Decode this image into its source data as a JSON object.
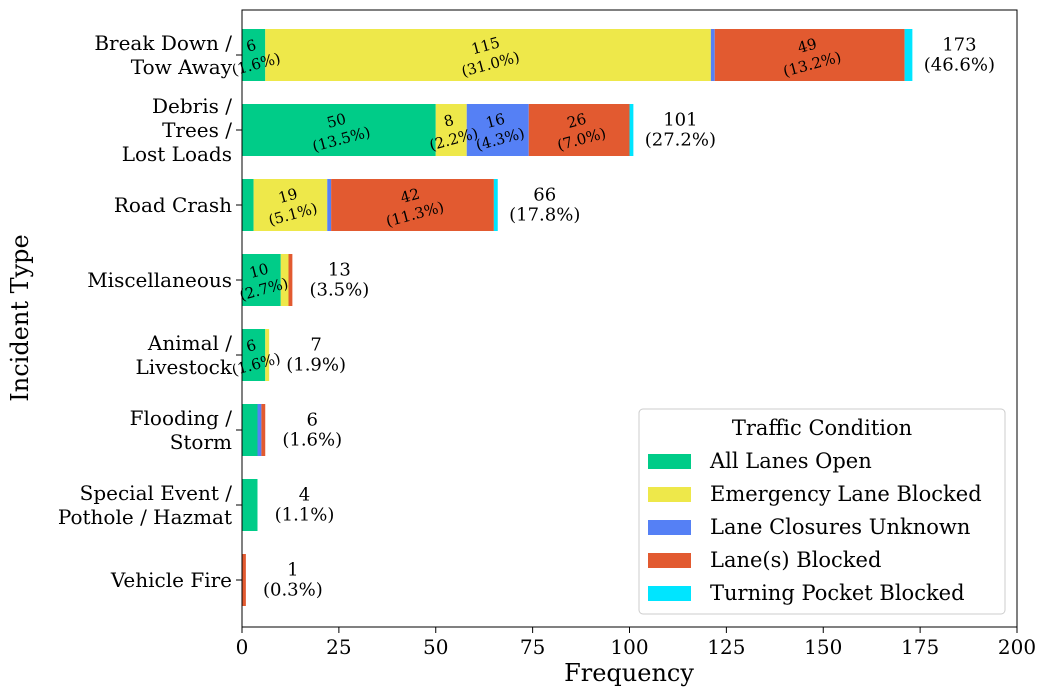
{
  "chart_data": {
    "type": "bar",
    "orientation": "horizontal",
    "stacked": true,
    "xlabel": "Frequency",
    "ylabel": "Incident Type",
    "xlim": [
      0,
      200
    ],
    "xticks": [
      "0",
      "25",
      "50",
      "75",
      "100",
      "125",
      "150",
      "175",
      "200"
    ],
    "grid": false,
    "legend_title": "Traffic Condition",
    "legend_position": "bottom-right",
    "categories": [
      [
        "Break Down /",
        "Tow Away"
      ],
      [
        "Debris /",
        "Trees /",
        "Lost Loads"
      ],
      [
        "Road Crash"
      ],
      [
        "Miscellaneous"
      ],
      [
        "Animal /",
        "Livestock"
      ],
      [
        "Flooding /",
        "Storm"
      ],
      [
        "Special Event /",
        "Pothole / Hazmat"
      ],
      [
        "Vehicle Fire"
      ]
    ],
    "series": [
      {
        "name": "All Lanes Open",
        "color": "#00cc88",
        "values": [
          6,
          50,
          3,
          10,
          6,
          4,
          4,
          0
        ]
      },
      {
        "name": "Emergency Lane Blocked",
        "color": "#eee84a",
        "values": [
          115,
          8,
          19,
          2,
          1,
          0,
          0,
          0
        ]
      },
      {
        "name": "Lane Closures Unknown",
        "color": "#5580f5",
        "values": [
          1,
          16,
          1,
          0,
          0,
          1,
          0,
          0
        ]
      },
      {
        "name": "Lane(s) Blocked",
        "color": "#e25a30",
        "values": [
          49,
          26,
          42,
          1,
          0,
          1,
          0,
          1
        ]
      },
      {
        "name": "Turning Pocket Blocked",
        "color": "#00e5ff",
        "values": [
          2,
          1,
          1,
          0,
          0,
          0,
          0,
          0
        ]
      }
    ],
    "segment_labels": [
      [
        {
          "series": 0,
          "text": [
            "6",
            "(1.6%)"
          ]
        },
        {
          "series": 1,
          "text": [
            "115",
            "(31.0%)"
          ]
        },
        {
          "series": 3,
          "text": [
            "49",
            "(13.2%)"
          ]
        }
      ],
      [
        {
          "series": 0,
          "text": [
            "50",
            "(13.5%)"
          ]
        },
        {
          "series": 1,
          "text": [
            "8",
            "(2.2%)"
          ]
        },
        {
          "series": 2,
          "text": [
            "16",
            "(4.3%)"
          ]
        },
        {
          "series": 3,
          "text": [
            "26",
            "(7.0%)"
          ]
        }
      ],
      [
        {
          "series": 1,
          "text": [
            "19",
            "(5.1%)"
          ]
        },
        {
          "series": 3,
          "text": [
            "42",
            "(11.3%)"
          ]
        }
      ],
      [
        {
          "series": 0,
          "text": [
            "10",
            "(2.7%)"
          ]
        }
      ],
      [
        {
          "series": 0,
          "text": [
            "6",
            "(1.6%)"
          ]
        }
      ],
      [],
      [],
      []
    ],
    "totals": [
      {
        "value": 173,
        "text": [
          "173",
          "(46.6%)"
        ]
      },
      {
        "value": 101,
        "text": [
          "101",
          "(27.2%)"
        ]
      },
      {
        "value": 66,
        "text": [
          "66",
          "(17.8%)"
        ]
      },
      {
        "value": 13,
        "text": [
          "13",
          "(3.5%)"
        ]
      },
      {
        "value": 7,
        "text": [
          "7",
          "(1.9%)"
        ]
      },
      {
        "value": 6,
        "text": [
          "6",
          "(1.6%)"
        ]
      },
      {
        "value": 4,
        "text": [
          "4",
          "(1.1%)"
        ]
      },
      {
        "value": 1,
        "text": [
          "1",
          "(0.3%)"
        ]
      }
    ]
  }
}
